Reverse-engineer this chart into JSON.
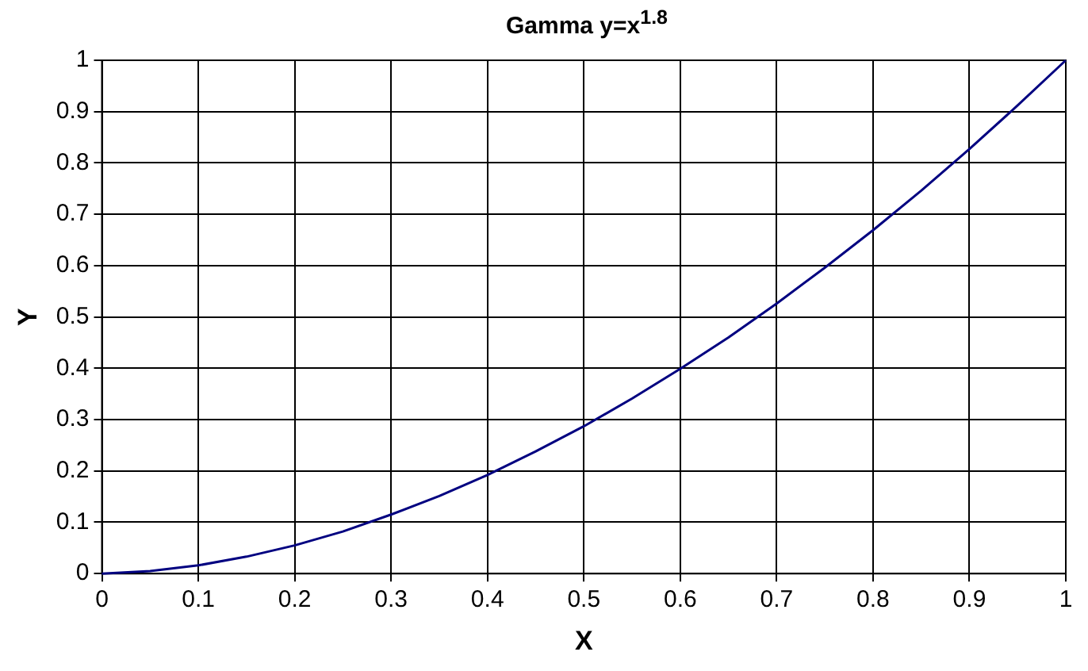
{
  "chart_data": {
    "type": "line",
    "title": "Gamma y=x$^{1.8}$",
    "xlabel": "X",
    "ylabel": "Y",
    "x": [
      0,
      0.05,
      0.1,
      0.15,
      0.2,
      0.25,
      0.3,
      0.35,
      0.4,
      0.45,
      0.5,
      0.55,
      0.6,
      0.65,
      0.7,
      0.75,
      0.8,
      0.85,
      0.9,
      0.95,
      1
    ],
    "series": [
      {
        "color": "#000080",
        "values": [
          0,
          0.005,
          0.016,
          0.033,
          0.055,
          0.082,
          0.115,
          0.151,
          0.192,
          0.238,
          0.287,
          0.341,
          0.399,
          0.46,
          0.526,
          0.596,
          0.669,
          0.746,
          0.827,
          0.912,
          1
        ]
      }
    ],
    "xlim": [
      0,
      1
    ],
    "xticks": [
      0,
      0.1,
      0.2,
      0.3,
      0.4,
      0.5,
      0.6,
      0.7,
      0.8,
      0.9,
      1
    ],
    "ylim": [
      0,
      1
    ],
    "yticks": [
      0,
      0.1,
      0.2,
      0.3,
      0.4,
      0.5,
      0.6,
      0.7,
      0.8,
      0.9,
      1
    ],
    "grid": true,
    "legend": false,
    "marker": "none",
    "line_style": "solid"
  }
}
